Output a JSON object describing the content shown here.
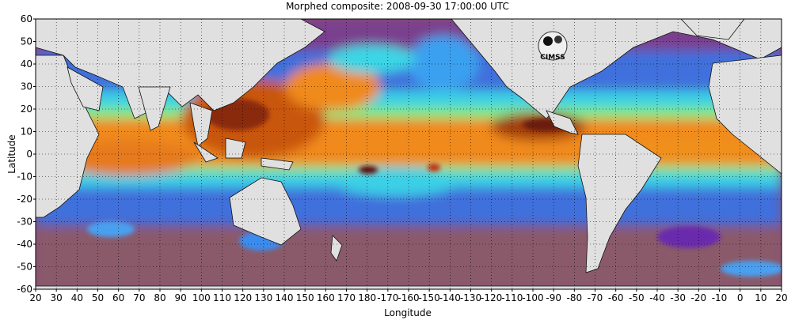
{
  "title": "Morphed composite: 2008-09-30 17:00:00 UTC",
  "xlabel": "Longitude",
  "ylabel": "Latitude",
  "logo_text": "CIMSS",
  "x_ticks": [
    "20",
    "30",
    "40",
    "50",
    "60",
    "70",
    "80",
    "90",
    "100",
    "110",
    "120",
    "130",
    "140",
    "150",
    "160",
    "170",
    "180",
    "-170",
    "-160",
    "-150",
    "-140",
    "-130",
    "-120",
    "-110",
    "-100",
    "-90",
    "-80",
    "-70",
    "-60",
    "-50",
    "-40",
    "-30",
    "-20",
    "-10",
    "0",
    "10",
    "20"
  ],
  "y_ticks": [
    "60",
    "50",
    "40",
    "30",
    "20",
    "10",
    "0",
    "-10",
    "-20",
    "-30",
    "-40",
    "-50",
    "-60"
  ],
  "colors": {
    "land": "#e0e0e0",
    "very_dry": "#8a4f78",
    "dry": "#6a2cae",
    "low": "#3a8cf0",
    "mid": "#3ad6e6",
    "mid_high": "#7af08a",
    "high": "#f08a1c",
    "very_high": "#b04a0c",
    "extreme": "#6a1a0a"
  }
}
